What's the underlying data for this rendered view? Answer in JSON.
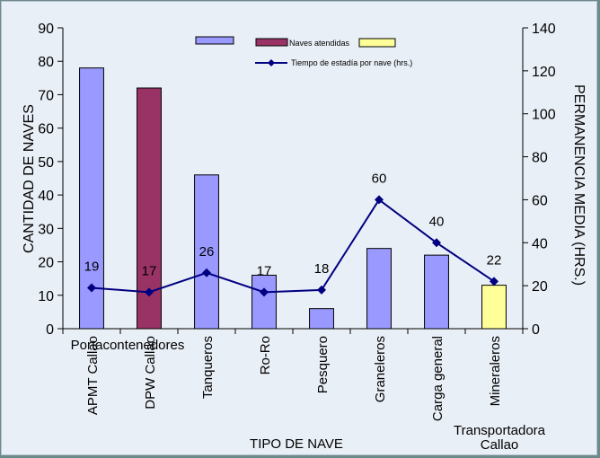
{
  "chart_data": {
    "type": "bar",
    "categories": [
      "APMT Callao",
      "DPW Callao",
      "Tanqueros",
      "Ro-Ro",
      "Pesquero",
      "Graneleros",
      "Carga general",
      "Mineraleros"
    ],
    "group_labels": [
      "Portacontenedores",
      "Transportadora\nCallao"
    ],
    "bar_values": [
      78,
      72,
      46,
      16,
      6,
      24,
      22,
      13
    ],
    "bar_colors": [
      "#9999ff",
      "#993366",
      "#9999ff",
      "#9999ff",
      "#9999ff",
      "#9999ff",
      "#9999ff",
      "#ffff99"
    ],
    "line_values": [
      19,
      17,
      26,
      17,
      18,
      60,
      40,
      22
    ],
    "line_color": "#000080",
    "xlabel": "TIPO DE NAVE",
    "ylabel": "CANTIDAD DE NAVES",
    "y2label": "PERMANENCIA MEDIA (HRS.)",
    "ylim": [
      0,
      90
    ],
    "y_ticks": [
      0,
      10,
      20,
      30,
      40,
      50,
      60,
      70,
      80,
      90
    ],
    "y2lim": [
      0,
      140
    ],
    "y2_ticks": [
      0,
      20,
      40,
      60,
      80,
      100,
      120,
      140
    ],
    "legend": {
      "bar_label": "Naves atendidas",
      "line_label": "Tiempo de estadía por nave (hrs.)",
      "swatch_colors": [
        "#9999ff",
        "#993366",
        "#ffff99"
      ],
      "placement": "top-center"
    },
    "grid": false
  }
}
